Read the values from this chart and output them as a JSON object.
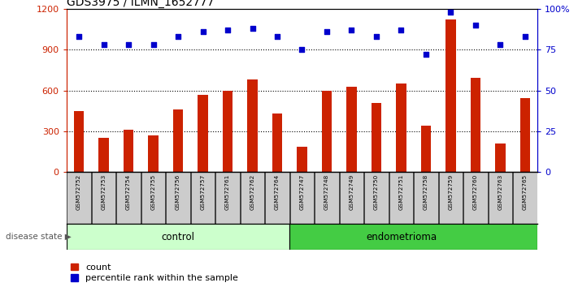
{
  "title": "GDS3975 / ILMN_1652777",
  "samples": [
    "GSM572752",
    "GSM572753",
    "GSM572754",
    "GSM572755",
    "GSM572756",
    "GSM572757",
    "GSM572761",
    "GSM572762",
    "GSM572764",
    "GSM572747",
    "GSM572748",
    "GSM572749",
    "GSM572750",
    "GSM572751",
    "GSM572758",
    "GSM572759",
    "GSM572760",
    "GSM572763",
    "GSM572765"
  ],
  "counts": [
    450,
    255,
    310,
    270,
    460,
    565,
    600,
    680,
    430,
    185,
    600,
    625,
    510,
    650,
    340,
    1120,
    690,
    210,
    545
  ],
  "percentiles": [
    83,
    78,
    78,
    78,
    83,
    86,
    87,
    88,
    83,
    75,
    86,
    87,
    83,
    87,
    72,
    98,
    90,
    78,
    83
  ],
  "control_count": 9,
  "endometrioma_count": 10,
  "ylim_left": [
    0,
    1200
  ],
  "ylim_right": [
    0,
    100
  ],
  "yticks_left": [
    0,
    300,
    600,
    900,
    1200
  ],
  "yticks_right": [
    0,
    25,
    50,
    75,
    100
  ],
  "ytick_labels_right": [
    "0",
    "25",
    "50",
    "75",
    "100%"
  ],
  "bar_color": "#cc2200",
  "dot_color": "#0000cc",
  "control_bg": "#ccffcc",
  "endo_bg": "#44cc44",
  "sample_bg": "#cccccc",
  "grid_color": "black",
  "legend_count_label": "count",
  "legend_pct_label": "percentile rank within the sample",
  "disease_state_label": "disease state",
  "control_label": "control",
  "endo_label": "endometrioma"
}
